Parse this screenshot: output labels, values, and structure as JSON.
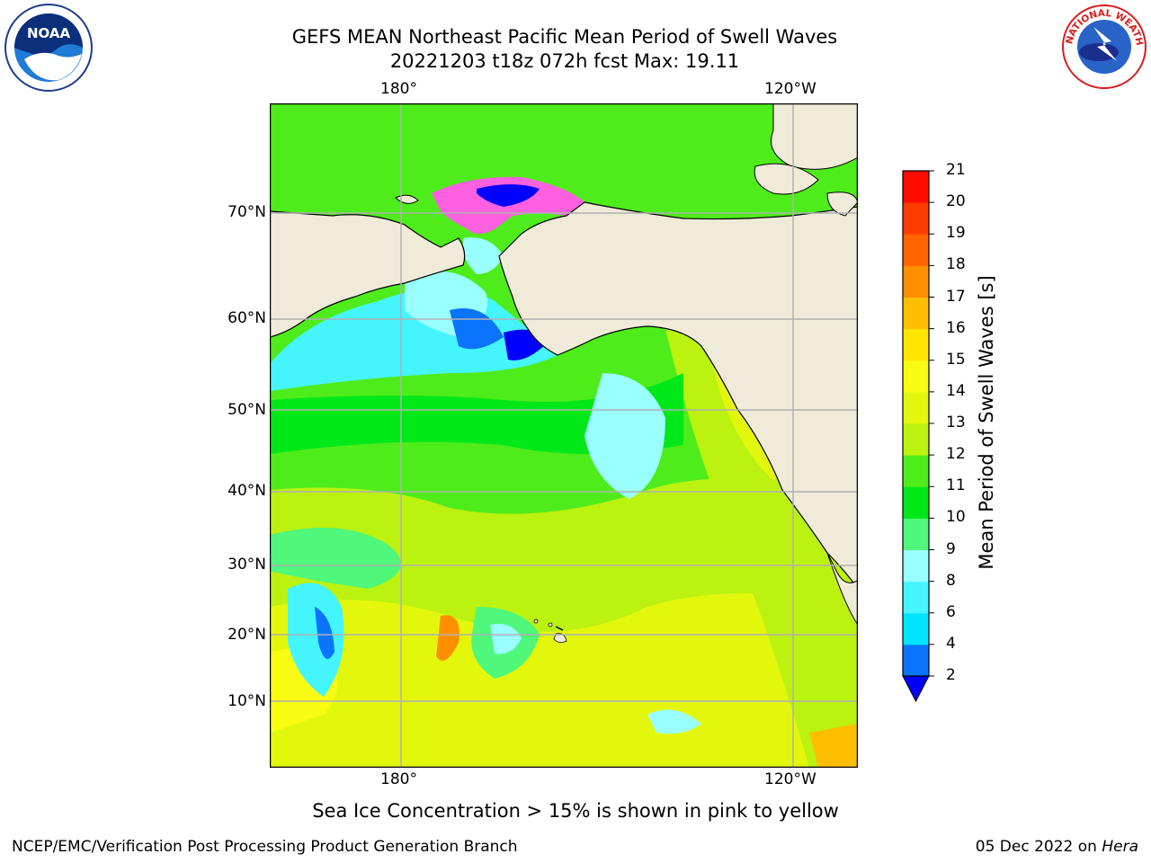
{
  "header": {
    "title_line1": "GEFS MEAN Northeast Pacific Mean Period of Swell Waves",
    "title_line2": "20221203 t18z 072h fcst   Max: 19.11"
  },
  "logos": {
    "noaa_text": "NOAA",
    "nws_text": "NATIONAL WEATHER SERVICE"
  },
  "map": {
    "lon_labels": [
      "180°",
      "120°W"
    ],
    "lat_labels": [
      "70°N",
      "60°N",
      "50°N",
      "40°N",
      "30°N",
      "20°N",
      "10°N"
    ],
    "colors": {
      "land": "#efebd8",
      "grid": "#b0b0b0",
      "coast": "#000000",
      "ice_pink": "#ff60e0"
    }
  },
  "colorbar": {
    "label": "Mean Period of Swell Waves [s]",
    "ticks": [
      "2",
      "4",
      "6",
      "8",
      "9",
      "10",
      "11",
      "12",
      "13",
      "14",
      "15",
      "16",
      "17",
      "18",
      "19",
      "20",
      "21"
    ],
    "colors": [
      "#0a74ff",
      "#00e4ff",
      "#44f5ff",
      "#9affff",
      "#4ff77a",
      "#00e818",
      "#4fec1b",
      "#bbf20f",
      "#e3f70d",
      "#f7fc10",
      "#ffe600",
      "#ffbf00",
      "#ff8f00",
      "#ff6400",
      "#ff3c00",
      "#ff0a00"
    ],
    "extend_color": "#0000ff"
  },
  "caption": "Sea Ice Concentration > 15% is shown in pink to yellow",
  "footer": {
    "left": "NCEP/EMC/Verification Post Processing Product Generation Branch",
    "right_prefix": "05 Dec 2022 on ",
    "right_host": "Hera"
  }
}
